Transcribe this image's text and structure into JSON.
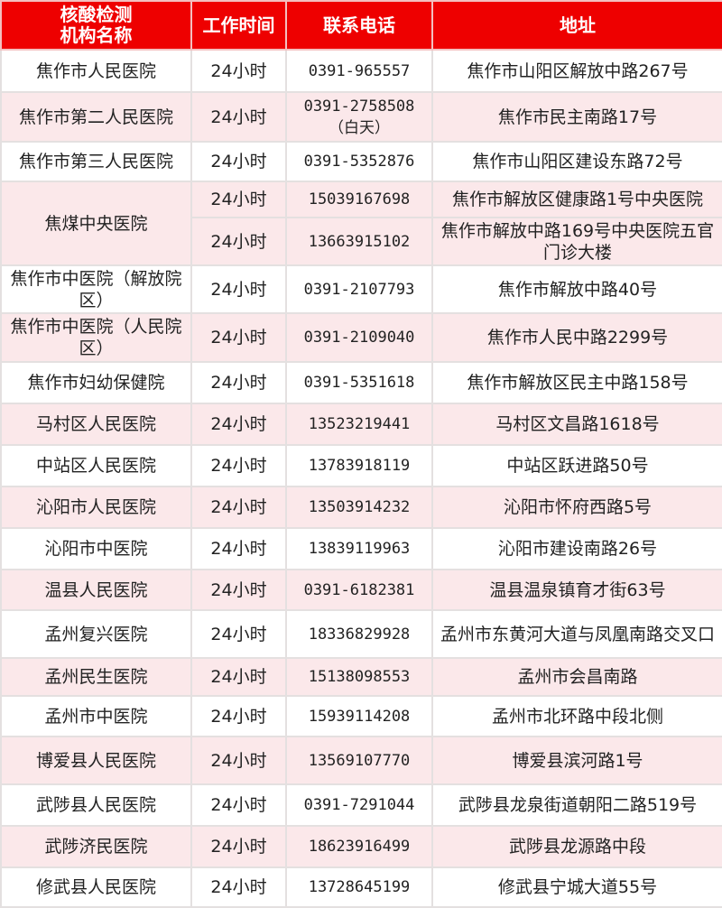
{
  "header": {
    "name": "核酸检测\n机构名称",
    "hours": "工作时间",
    "phone": "联系电话",
    "address": "地址"
  },
  "colors": {
    "header_bg": "#ee0000",
    "stripe": "#fbe8ea",
    "grid": "#e4e0e0"
  },
  "rows": [
    {
      "name": "焦作市人民医院",
      "entries": [
        {
          "hours": "24小时",
          "phone": "0391-965557",
          "address": "焦作市山阳区解放中路267号"
        }
      ]
    },
    {
      "name": "焦作市第二人民医院",
      "entries": [
        {
          "hours": "24小时",
          "phone": "0391-2758508（白天）",
          "address": "焦作市民主南路17号"
        }
      ]
    },
    {
      "name": "焦作市第三人民医院",
      "entries": [
        {
          "hours": "24小时",
          "phone": "0391-5352876",
          "address": "焦作市山阳区建设东路72号"
        }
      ]
    },
    {
      "name": "焦煤中央医院",
      "entries": [
        {
          "hours": "24小时",
          "phone": "15039167698",
          "address": "焦作市解放区健康路1号中央医院"
        },
        {
          "hours": "24小时",
          "phone": "13663915102",
          "address": "焦作市解放中路169号中央医院五官门诊大楼"
        }
      ]
    },
    {
      "name": "焦作市中医院（解放院区）",
      "entries": [
        {
          "hours": "24小时",
          "phone": "0391-2107793",
          "address": "焦作市解放中路40号"
        }
      ]
    },
    {
      "name": "焦作市中医院（人民院区）",
      "entries": [
        {
          "hours": "24小时",
          "phone": "0391-2109040",
          "address": "焦作市人民中路2299号"
        }
      ]
    },
    {
      "name": "焦作市妇幼保健院",
      "entries": [
        {
          "hours": "24小时",
          "phone": "0391-5351618",
          "address": "焦作市解放区民主中路158号"
        }
      ]
    },
    {
      "name": "马村区人民医院",
      "entries": [
        {
          "hours": "24小时",
          "phone": "13523219441",
          "address": "马村区文昌路1618号"
        }
      ]
    },
    {
      "name": "中站区人民医院",
      "entries": [
        {
          "hours": "24小时",
          "phone": "13783918119",
          "address": "中站区跃进路50号"
        }
      ]
    },
    {
      "name": "沁阳市人民医院",
      "entries": [
        {
          "hours": "24小时",
          "phone": "13503914232",
          "address": "沁阳市怀府西路5号"
        }
      ]
    },
    {
      "name": "沁阳市中医院",
      "entries": [
        {
          "hours": "24小时",
          "phone": "13839119963",
          "address": "沁阳市建设南路26号"
        }
      ]
    },
    {
      "name": "温县人民医院",
      "entries": [
        {
          "hours": "24小时",
          "phone": "0391-6182381",
          "address": "温县温泉镇育才街63号"
        }
      ]
    },
    {
      "name": "孟州复兴医院",
      "entries": [
        {
          "hours": "24小时",
          "phone": "18336829928",
          "address": "孟州市东黄河大道与凤凰南路交叉口"
        }
      ]
    },
    {
      "name": "孟州民生医院",
      "entries": [
        {
          "hours": "24小时",
          "phone": "15138098553",
          "address": "孟州市会昌南路"
        }
      ]
    },
    {
      "name": "孟州市中医院",
      "entries": [
        {
          "hours": "24小时",
          "phone": "15939114208",
          "address": "孟州市北环路中段北侧"
        }
      ]
    },
    {
      "name": "博爱县人民医院",
      "entries": [
        {
          "hours": "24小时",
          "phone": "13569107770",
          "address": "博爱县滨河路1号"
        }
      ]
    },
    {
      "name": "武陟县人民医院",
      "entries": [
        {
          "hours": "24小时",
          "phone": "0391-7291044",
          "address": "武陟县龙泉街道朝阳二路519号"
        }
      ]
    },
    {
      "name": "武陟济民医院",
      "entries": [
        {
          "hours": "24小时",
          "phone": "18623916499",
          "address": "武陟县龙源路中段"
        }
      ]
    },
    {
      "name": "修武县人民医院",
      "entries": [
        {
          "hours": "24小时",
          "phone": "13728645199",
          "address": "修武县宁城大道55号"
        }
      ]
    }
  ]
}
